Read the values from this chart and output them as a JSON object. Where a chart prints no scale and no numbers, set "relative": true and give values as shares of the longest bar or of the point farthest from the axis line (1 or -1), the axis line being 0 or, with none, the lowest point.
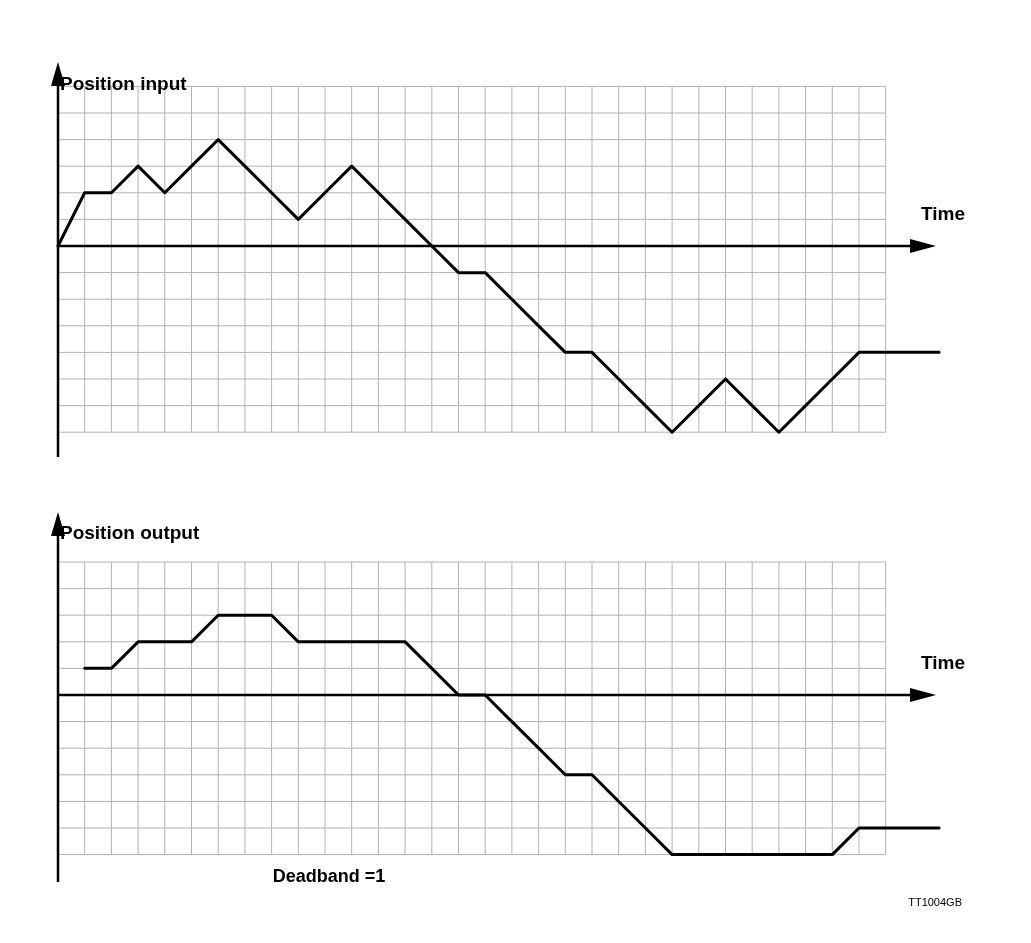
{
  "chart_data": [
    {
      "type": "line",
      "ylabel": "Position input",
      "xlabel": "Time",
      "relative": true,
      "grid": true,
      "categories": [
        null,
        null,
        null,
        null,
        null,
        null,
        null,
        null,
        null,
        null,
        null,
        null,
        null,
        null,
        null,
        null,
        null,
        null,
        null,
        null,
        null,
        null,
        null,
        null,
        null,
        null,
        null,
        null,
        null,
        null,
        null,
        null,
        null,
        null
      ],
      "series": [
        {
          "color": "#000000",
          "values": [
            0,
            0.286,
            0.286,
            0.429,
            0.286,
            0.429,
            0.571,
            0.429,
            0.286,
            0.143,
            0.286,
            0.429,
            0.286,
            0.143,
            0,
            -0.143,
            -0.143,
            -0.286,
            -0.429,
            -0.571,
            -0.571,
            -0.714,
            -0.857,
            -1,
            -0.857,
            -0.714,
            -0.857,
            -1,
            -0.857,
            -0.714,
            -0.571,
            -0.571,
            -0.571,
            -0.571
          ]
        }
      ]
    },
    {
      "type": "line",
      "ylabel": "Position output",
      "xlabel": "Time",
      "relative": true,
      "grid": true,
      "categories": [
        null,
        null,
        null,
        null,
        null,
        null,
        null,
        null,
        null,
        null,
        null,
        null,
        null,
        null,
        null,
        null,
        null,
        null,
        null,
        null,
        null,
        null,
        null,
        null,
        null,
        null,
        null,
        null,
        null,
        null,
        null,
        null,
        null,
        null
      ],
      "series": [
        {
          "color": "#000000",
          "values": [
            null,
            0.167,
            0.167,
            0.333,
            0.333,
            0.333,
            0.5,
            0.5,
            0.5,
            0.333,
            0.333,
            0.333,
            0.333,
            0.333,
            0.167,
            0,
            0,
            -0.167,
            -0.333,
            -0.5,
            -0.5,
            -0.667,
            -0.833,
            -1,
            -1,
            -1,
            -1,
            -1,
            -1,
            -1,
            -0.833,
            -0.833,
            -0.833,
            -0.833
          ]
        }
      ],
      "annotations": [
        "Deadband =1",
        "TT1004GB"
      ]
    }
  ]
}
